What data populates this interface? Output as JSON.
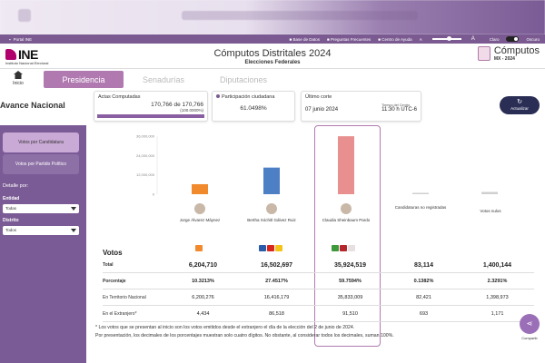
{
  "topbar": {
    "brand": "Portal INE",
    "links": [
      "Base de Datos",
      "Preguntas Frecuentes",
      "Centro de Ayuda"
    ],
    "font_small": "A",
    "font_large": "A",
    "theme_light": "Claro",
    "theme_dark": "Oscuro"
  },
  "header": {
    "logo": "INE",
    "logo_sub": "Instituto Nacional Electoral",
    "title": "Cómputos Distritales 2024",
    "subtitle": "Elecciones Federales",
    "computos_title": "Cómputos",
    "computos_sub": "MX - 2024"
  },
  "nav": {
    "home": "Inicio",
    "tabs": [
      "Presidencia",
      "Senadurías",
      "Diputaciones"
    ]
  },
  "status": {
    "section": "Avance Nacional",
    "actas_label": "Actas Computadas",
    "actas_value": "170,766 de 170,766",
    "actas_pct": "(100.0000%)",
    "actas_progress": 100,
    "participacion_label": "Participación ciudadana",
    "participacion_value": "61.0498%",
    "corte_label": "Último corte",
    "corte_fecha": "07 junio 2024",
    "corte_tz_label": "Tiempo del Centro",
    "corte_hora": "11:30 h UTC-6",
    "update_button": "Actualizar"
  },
  "sidebar": {
    "buttons": [
      "Votos por Candidatura",
      "Votos por Partido Político"
    ],
    "detail_label": "Detalle por:",
    "entidad_label": "Entidad",
    "entidad_value": "Todas",
    "distrito_label": "Distrito",
    "distrito_value": "Todos"
  },
  "chart_data": {
    "type": "bar",
    "categories": [
      "Jorge Álvarez Máynez",
      "Bertha Xóchitl Gálvez Ruiz",
      "Claudia Sheinbaum Pardo",
      "Candidaturas no registradas",
      "Votos nulos"
    ],
    "values": [
      6204710,
      16502697,
      35924519,
      83114,
      1400144
    ],
    "ylim": [
      0,
      36000000
    ],
    "ticks": [
      "36,000,000",
      "24,000,000",
      "12,000,000",
      "0"
    ],
    "tick_values": [
      36000000,
      24000000,
      12000000,
      0
    ],
    "colors": [
      "#f08a2c",
      "#4d7fc4",
      "#e88f8f",
      "#cfcfcf",
      "#cfcfcf"
    ]
  },
  "table": {
    "title": "Votos",
    "rows": [
      {
        "label": "Total",
        "values": [
          "6,204,710",
          "16,502,697",
          "35,924,519",
          "83,114",
          "1,400,144"
        ]
      },
      {
        "label": "Porcentaje",
        "values": [
          "10.3213%",
          "27.4517%",
          "59.7594%",
          "0.1382%",
          "2.3291%"
        ]
      },
      {
        "label": "En Territorio Nacional",
        "values": [
          "6,200,276",
          "16,416,179",
          "35,833,009",
          "82,421",
          "1,398,973"
        ]
      },
      {
        "label": "En el Extranjero*",
        "values": [
          "4,434",
          "86,518",
          "91,510",
          "693",
          "1,171"
        ]
      }
    ]
  },
  "notes": [
    "* Los votos que se presentan al inicio son los votos emitidos desde el extranjero el día de la elección del 2 de junio de 2024.",
    "Por presentación, los decimales de los porcentajes muestran solo cuatro dígitos. No obstante, al considerar todos los decimales, suman 100%."
  ],
  "share": {
    "label": "Compartir"
  }
}
